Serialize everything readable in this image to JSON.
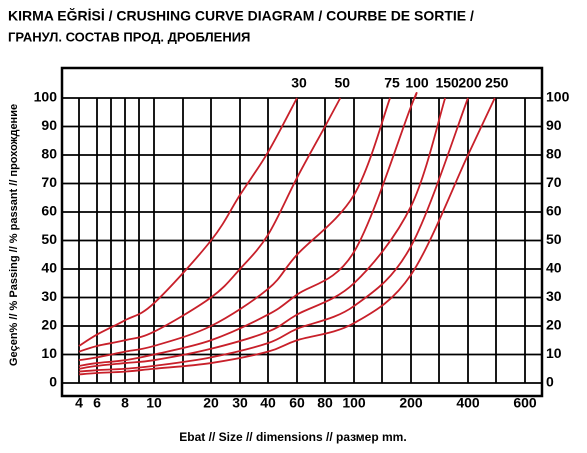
{
  "chart_data": {
    "type": "line",
    "title": "KIRMA EĞRİSİ / CRUSHING CURVE DIAGRAM / COURBE DE SORTIE /",
    "subtitle": "ГРАНУЛ. СОСТАВ ПРОД. ДРОБЛЕНИЯ",
    "y_label": "Geçen% // % Passing // % passant // прохождение",
    "x_label": "Ebat // Size // dimensions // размер  mm.",
    "xticks": [
      4,
      6,
      8,
      10,
      20,
      30,
      40,
      60,
      80,
      100,
      200,
      400,
      600
    ],
    "ylim": [
      0,
      100
    ],
    "yticks": [
      0,
      10,
      20,
      30,
      40,
      50,
      60,
      70,
      80,
      90,
      100
    ],
    "grid": true,
    "series": [
      {
        "name": "30",
        "color": "#c8202a",
        "x": [
          4,
          6,
          8,
          10,
          20,
          30,
          40,
          60
        ],
        "values": [
          13,
          17,
          22,
          28,
          50,
          66,
          81,
          100
        ]
      },
      {
        "name": "50",
        "color": "#c8202a",
        "x": [
          4,
          6,
          8,
          10,
          20,
          30,
          40,
          60,
          80,
          90
        ],
        "values": [
          11,
          13,
          15,
          18,
          30,
          40,
          52,
          72,
          90,
          100
        ]
      },
      {
        "name": "75",
        "color": "#c8202a",
        "x": [
          4,
          6,
          8,
          10,
          20,
          40,
          60,
          100,
          155
        ],
        "values": [
          8,
          9,
          11,
          13,
          20,
          33,
          45,
          66,
          100
        ]
      },
      {
        "name": "100",
        "color": "#c8202a",
        "x": [
          4,
          6,
          8,
          10,
          20,
          40,
          60,
          100,
          200,
          210
        ],
        "values": [
          6,
          7,
          8,
          10,
          15,
          24,
          31,
          46,
          97,
          100
        ]
      },
      {
        "name": "150",
        "color": "#c8202a",
        "x": [
          4,
          6,
          8,
          10,
          20,
          40,
          60,
          100,
          200,
          303
        ],
        "values": [
          5,
          6,
          7,
          8,
          12,
          18,
          24,
          35,
          62,
          100
        ]
      },
      {
        "name": "200",
        "color": "#c8202a",
        "x": [
          4,
          6,
          8,
          10,
          20,
          40,
          60,
          100,
          200,
          400
        ],
        "values": [
          4,
          4.5,
          5,
          6,
          9,
          14,
          19,
          27,
          48,
          100
        ]
      },
      {
        "name": "250",
        "color": "#c8202a",
        "x": [
          4,
          6,
          8,
          10,
          20,
          40,
          60,
          100,
          200,
          400,
          484
        ],
        "values": [
          3,
          3.5,
          4,
          5,
          7,
          11,
          15,
          21,
          38,
          80,
          100
        ]
      }
    ]
  }
}
